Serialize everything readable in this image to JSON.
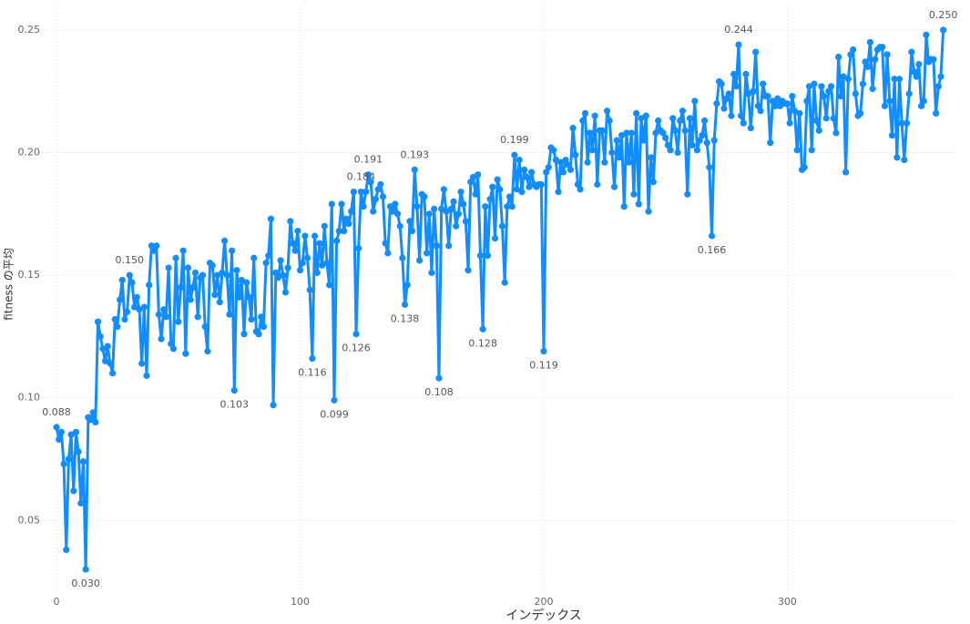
{
  "chart_data": {
    "type": "line",
    "x_label": "インデックス",
    "y_label": "fitness の平均",
    "color": "#118dff",
    "grid": true,
    "xlim": [
      -6,
      369
    ],
    "xticks": [
      0,
      100,
      200,
      300
    ],
    "ylim": [
      0.02,
      0.26
    ],
    "yticks": [
      0.05,
      {
        "value": 0.1,
        "label": "0.10"
      },
      0.15,
      {
        "value": 0.2,
        "label": "0.20"
      },
      0.25
    ],
    "values": [
      0.088,
      0.083,
      0.086,
      0.073,
      0.038,
      0.075,
      0.085,
      0.062,
      0.086,
      0.078,
      0.057,
      0.074,
      0.03,
      0.092,
      0.091,
      0.094,
      0.09,
      0.131,
      0.125,
      0.12,
      0.115,
      0.121,
      0.114,
      0.11,
      0.132,
      0.129,
      0.14,
      0.148,
      0.132,
      0.135,
      0.15,
      0.147,
      0.137,
      0.141,
      0.136,
      0.114,
      0.137,
      0.109,
      0.146,
      0.162,
      0.16,
      0.162,
      0.134,
      0.124,
      0.136,
      0.133,
      0.153,
      0.122,
      0.12,
      0.157,
      0.131,
      0.145,
      0.16,
      0.118,
      0.153,
      0.14,
      0.145,
      0.151,
      0.133,
      0.149,
      0.15,
      0.129,
      0.119,
      0.155,
      0.154,
      0.142,
      0.15,
      0.139,
      0.151,
      0.164,
      0.15,
      0.134,
      0.16,
      0.103,
      0.152,
      0.141,
      0.148,
      0.126,
      0.147,
      0.141,
      0.132,
      0.157,
      0.127,
      0.126,
      0.133,
      0.129,
      0.155,
      0.158,
      0.173,
      0.097,
      0.151,
      0.149,
      0.156,
      0.15,
      0.143,
      0.153,
      0.172,
      0.163,
      0.16,
      0.168,
      0.152,
      0.155,
      0.166,
      0.157,
      0.144,
      0.116,
      0.166,
      0.151,
      0.163,
      0.154,
      0.17,
      0.155,
      0.146,
      0.179,
      0.099,
      0.164,
      0.168,
      0.179,
      0.168,
      0.173,
      0.171,
      0.176,
      0.184,
      0.126,
      0.161,
      0.184,
      0.178,
      0.184,
      0.191,
      0.188,
      0.176,
      0.181,
      0.185,
      0.187,
      0.182,
      0.163,
      0.159,
      0.178,
      0.176,
      0.179,
      0.175,
      0.17,
      0.157,
      0.138,
      0.146,
      0.172,
      0.168,
      0.193,
      0.178,
      0.156,
      0.183,
      0.182,
      0.159,
      0.175,
      0.151,
      0.177,
      0.162,
      0.108,
      0.177,
      0.185,
      0.176,
      0.162,
      0.177,
      0.18,
      0.17,
      0.175,
      0.184,
      0.179,
      0.172,
      0.152,
      0.188,
      0.19,
      0.183,
      0.191,
      0.158,
      0.128,
      0.178,
      0.158,
      0.181,
      0.186,
      0.165,
      0.189,
      0.185,
      0.17,
      0.147,
      0.178,
      0.182,
      0.178,
      0.199,
      0.185,
      0.197,
      0.184,
      0.193,
      0.19,
      0.186,
      0.192,
      0.187,
      0.186,
      0.187,
      0.187,
      0.119,
      0.192,
      0.194,
      0.202,
      0.201,
      0.197,
      0.184,
      0.196,
      0.192,
      0.197,
      0.195,
      0.193,
      0.21,
      0.199,
      0.187,
      0.185,
      0.213,
      0.216,
      0.196,
      0.208,
      0.201,
      0.215,
      0.187,
      0.209,
      0.209,
      0.196,
      0.217,
      0.213,
      0.2,
      0.186,
      0.205,
      0.198,
      0.207,
      0.178,
      0.208,
      0.196,
      0.208,
      0.183,
      0.216,
      0.179,
      0.214,
      0.205,
      0.215,
      0.176,
      0.198,
      0.188,
      0.208,
      0.213,
      0.209,
      0.208,
      0.206,
      0.203,
      0.201,
      0.214,
      0.209,
      0.2,
      0.213,
      0.217,
      0.209,
      0.183,
      0.214,
      0.203,
      0.221,
      0.201,
      0.205,
      0.207,
      0.213,
      0.204,
      0.194,
      0.166,
      0.205,
      0.22,
      0.229,
      0.228,
      0.218,
      0.222,
      0.224,
      0.215,
      0.232,
      0.227,
      0.244,
      0.215,
      0.212,
      0.232,
      0.224,
      0.21,
      0.225,
      0.241,
      0.219,
      0.217,
      0.228,
      0.223,
      0.223,
      0.204,
      0.221,
      0.219,
      0.222,
      0.219,
      0.221,
      0.22,
      0.22,
      0.212,
      0.223,
      0.217,
      0.201,
      0.216,
      0.193,
      0.194,
      0.221,
      0.227,
      0.201,
      0.228,
      0.213,
      0.209,
      0.227,
      0.223,
      0.214,
      0.225,
      0.227,
      0.214,
      0.208,
      0.239,
      0.223,
      0.231,
      0.192,
      0.23,
      0.24,
      0.242,
      0.224,
      0.215,
      0.216,
      0.228,
      0.237,
      0.235,
      0.245,
      0.226,
      0.238,
      0.242,
      0.243,
      0.243,
      0.219,
      0.24,
      0.221,
      0.207,
      0.23,
      0.198,
      0.23,
      0.212,
      0.197,
      0.212,
      0.224,
      0.241,
      0.233,
      0.231,
      0.236,
      0.219,
      0.221,
      0.248,
      0.237,
      0.238,
      0.238,
      0.216,
      0.227,
      0.231,
      0.25
    ],
    "value_labels": [
      "0.088",
      null,
      null,
      null,
      null,
      null,
      null,
      null,
      null,
      null,
      null,
      null,
      "0.030",
      null,
      null,
      null,
      null,
      null,
      null,
      null,
      null,
      null,
      null,
      null,
      null,
      null,
      null,
      null,
      null,
      null,
      "0.150",
      null,
      null,
      null,
      null,
      null,
      null,
      null,
      null,
      null,
      null,
      null,
      null,
      null,
      null,
      null,
      null,
      null,
      null,
      null,
      null,
      null,
      null,
      null,
      null,
      null,
      null,
      null,
      null,
      null,
      null,
      null,
      null,
      null,
      null,
      null,
      null,
      null,
      null,
      null,
      null,
      null,
      null,
      "0.103",
      null,
      null,
      null,
      null,
      null,
      null,
      null,
      null,
      null,
      null,
      null,
      null,
      null,
      null,
      null,
      null,
      null,
      null,
      null,
      null,
      null,
      null,
      null,
      null,
      null,
      null,
      null,
      null,
      null,
      null,
      null,
      "0.116",
      null,
      null,
      null,
      null,
      null,
      null,
      null,
      null,
      "0.099",
      null,
      null,
      null,
      null,
      null,
      null,
      null,
      null,
      "0.126",
      null,
      "0.184",
      null,
      null,
      "0.191",
      null,
      null,
      null,
      null,
      null,
      null,
      null,
      null,
      null,
      null,
      null,
      null,
      null,
      null,
      "0.138",
      null,
      null,
      null,
      "0.193",
      null,
      null,
      null,
      null,
      null,
      null,
      null,
      null,
      null,
      "0.108",
      null,
      null,
      null,
      null,
      null,
      null,
      null,
      null,
      null,
      null,
      null,
      null,
      null,
      null,
      null,
      null,
      null,
      "0.128",
      null,
      null,
      null,
      null,
      null,
      null,
      null,
      null,
      null,
      null,
      null,
      null,
      "0.199",
      null,
      null,
      null,
      null,
      null,
      null,
      null,
      null,
      null,
      null,
      null,
      "0.119",
      null,
      null,
      null,
      null,
      null,
      null,
      null,
      null,
      null,
      null,
      null,
      null,
      null,
      null,
      null,
      null,
      null,
      null,
      null,
      null,
      null,
      null,
      null,
      null,
      null,
      null,
      null,
      null,
      null,
      null,
      null,
      null,
      null,
      null,
      null,
      null,
      null,
      null,
      null,
      null,
      null,
      null,
      null,
      null,
      null,
      null,
      null,
      null,
      null,
      null,
      null,
      null,
      null,
      null,
      null,
      null,
      null,
      null,
      null,
      null,
      null,
      null,
      null,
      null,
      null,
      null,
      null,
      null,
      "0.166",
      null,
      null,
      null,
      null,
      null,
      null,
      null,
      null,
      null,
      null,
      "0.244",
      null,
      null,
      null,
      null,
      null,
      null,
      null,
      null,
      null,
      null,
      null,
      null,
      null,
      null,
      null,
      null,
      null,
      null,
      null,
      null,
      null,
      null,
      null,
      null,
      null,
      null,
      null,
      null,
      null,
      null,
      null,
      null,
      null,
      null,
      null,
      null,
      null,
      null,
      null,
      null,
      null,
      null,
      null,
      null,
      null,
      null,
      null,
      null,
      null,
      null,
      null,
      null,
      null,
      null,
      null,
      null,
      null,
      null,
      null,
      null,
      null,
      null,
      null,
      null,
      null,
      null,
      null,
      null,
      null,
      null,
      null,
      null,
      null,
      null,
      null,
      null,
      null,
      null,
      null,
      null,
      null,
      null,
      null,
      "0.250"
    ]
  }
}
